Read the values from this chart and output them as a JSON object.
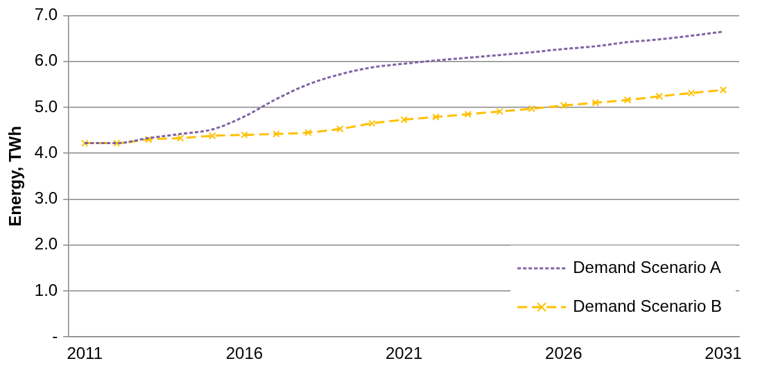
{
  "chart_data": {
    "type": "line",
    "ylabel": "Energy, TWh",
    "categories": [
      "2011",
      null,
      null,
      null,
      null,
      "2016",
      null,
      null,
      null,
      null,
      "2021",
      null,
      null,
      null,
      null,
      "2026",
      null,
      null,
      null,
      null,
      "2031"
    ],
    "series": [
      {
        "name": "Demand Scenario A",
        "color": "#8064a2",
        "marker": "none",
        "line_style": "dotted",
        "values": [
          4.22,
          4.22,
          4.33,
          4.42,
          4.52,
          4.8,
          5.18,
          5.5,
          5.72,
          5.87,
          5.95,
          6.02,
          6.08,
          6.14,
          6.2,
          6.27,
          6.33,
          6.42,
          6.48,
          6.56,
          6.65
        ]
      },
      {
        "name": "Demand Scenario B",
        "color": "#ffc000",
        "marker": "cross",
        "line_style": "dashed",
        "values": [
          4.22,
          4.22,
          4.3,
          4.33,
          4.38,
          4.4,
          4.42,
          4.45,
          4.53,
          4.65,
          4.73,
          4.79,
          4.85,
          4.91,
          4.97,
          5.04,
          5.1,
          5.16,
          5.24,
          5.31,
          5.38
        ]
      }
    ],
    "ylim": [
      0,
      7
    ],
    "yticks": [
      {
        "value": 0,
        "label": "-"
      },
      {
        "value": 1,
        "label": "1.0"
      },
      {
        "value": 2,
        "label": "2.0"
      },
      {
        "value": 3,
        "label": "3.0"
      },
      {
        "value": 4,
        "label": "4.0"
      },
      {
        "value": 5,
        "label": "5.0"
      },
      {
        "value": 6,
        "label": "6.0"
      },
      {
        "value": 7,
        "label": "7.0"
      }
    ],
    "grid": "y",
    "legend": "bottom right"
  }
}
